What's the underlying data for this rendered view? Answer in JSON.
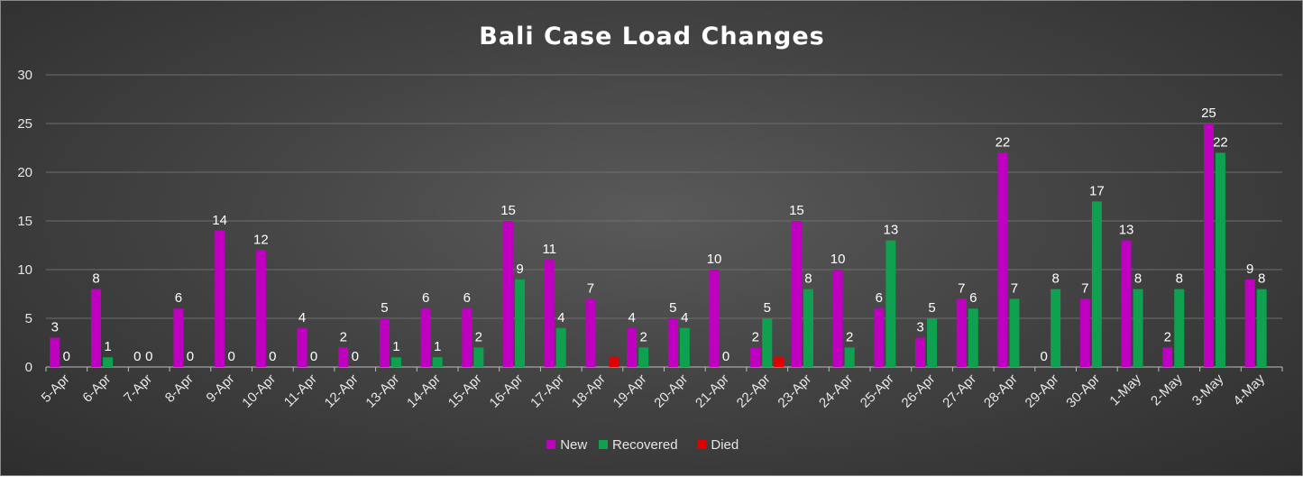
{
  "chart_data": {
    "type": "bar",
    "title": "Bali Case Load Changes",
    "categories": [
      "5-Apr",
      "6-Apr",
      "7-Apr",
      "8-Apr",
      "9-Apr",
      "10-Apr",
      "11-Apr",
      "12-Apr",
      "13-Apr",
      "14-Apr",
      "15-Apr",
      "16-Apr",
      "17-Apr",
      "18-Apr",
      "19-Apr",
      "20-Apr",
      "21-Apr",
      "22-Apr",
      "23-Apr",
      "24-Apr",
      "25-Apr",
      "26-Apr",
      "27-Apr",
      "28-Apr",
      "29-Apr",
      "30-Apr",
      "1-May",
      "2-May",
      "3-May",
      "4-May"
    ],
    "series": [
      {
        "name": "New",
        "color": "#c000c0",
        "values": [
          3,
          8,
          0,
          6,
          14,
          12,
          4,
          2,
          5,
          6,
          6,
          15,
          11,
          7,
          4,
          5,
          10,
          2,
          15,
          10,
          6,
          3,
          7,
          22,
          0,
          7,
          13,
          2,
          25,
          9
        ]
      },
      {
        "name": "Recovered",
        "color": "#0fa050",
        "values": [
          0,
          1,
          0,
          0,
          0,
          0,
          0,
          0,
          1,
          1,
          2,
          9,
          4,
          null,
          2,
          4,
          0,
          5,
          8,
          2,
          13,
          5,
          6,
          7,
          8,
          17,
          8,
          8,
          22,
          8
        ]
      },
      {
        "name": "Died",
        "color": "#e00000",
        "values": [
          null,
          null,
          null,
          null,
          null,
          null,
          null,
          null,
          null,
          null,
          null,
          null,
          null,
          1,
          null,
          null,
          null,
          1,
          null,
          null,
          null,
          null,
          null,
          null,
          null,
          null,
          null,
          null,
          null,
          null
        ]
      }
    ],
    "ylim": [
      0,
      30
    ],
    "yticks": [
      0,
      5,
      10,
      15,
      20,
      25,
      30
    ],
    "grid": true,
    "legend_position": "bottom"
  }
}
